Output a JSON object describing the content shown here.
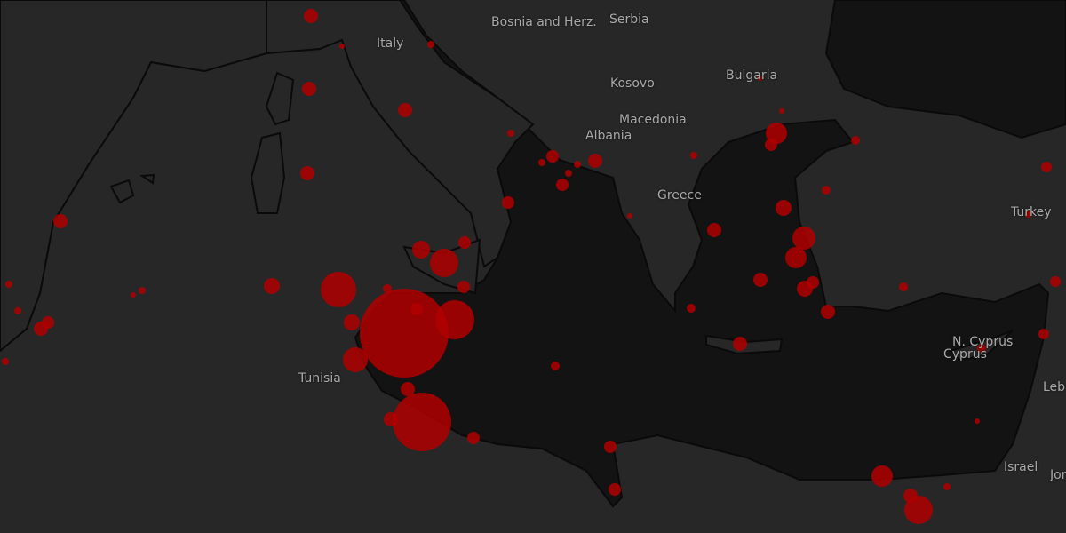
{
  "map": {
    "colors": {
      "land": "#272727",
      "sea": "#131313",
      "border": "#0a0a0a",
      "marker": "#b00000",
      "label": "#a9a9a9"
    },
    "labels": [
      {
        "id": "italy",
        "text": "Italy"
      },
      {
        "id": "bosnia",
        "text": "Bosnia and Herz."
      },
      {
        "id": "serbia",
        "text": "Serbia"
      },
      {
        "id": "kosovo",
        "text": "Kosovo"
      },
      {
        "id": "bulgaria",
        "text": "Bulgaria"
      },
      {
        "id": "macedonia",
        "text": "Macedonia"
      },
      {
        "id": "albania",
        "text": "Albania"
      },
      {
        "id": "greece",
        "text": "Greece"
      },
      {
        "id": "turkey",
        "text": "Turkey"
      },
      {
        "id": "tunisia",
        "text": "Tunisia"
      },
      {
        "id": "ncyprus",
        "text": "N. Cyprus"
      },
      {
        "id": "cyprus",
        "text": "Cyprus"
      },
      {
        "id": "lebanon",
        "text": "Lebano"
      },
      {
        "id": "israel",
        "text": "Israel"
      },
      {
        "id": "jordan",
        "text": "Jor"
      }
    ]
  }
}
